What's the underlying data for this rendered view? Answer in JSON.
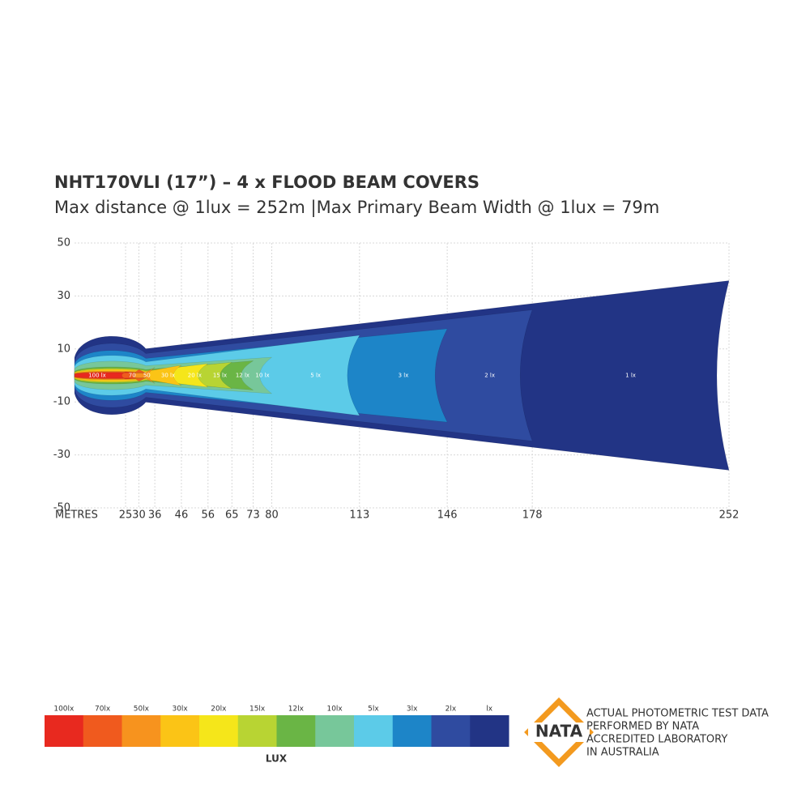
{
  "chart_data": {
    "type": "beam",
    "title": "NHT170VLI (17”) – 4 x FLOOD BEAM COVERS",
    "subtitle": "Max distance @ 1lux = 252m  |Max Primary  Beam Width @ 1lux = 79m",
    "xlabel": "METRES",
    "xlim": [
      0,
      252
    ],
    "xticks": [
      25,
      30,
      36,
      46,
      56,
      65,
      73,
      80,
      113,
      146,
      178,
      252
    ],
    "ylim": [
      -50,
      50
    ],
    "yticks": [
      50,
      30,
      10,
      -10,
      -30,
      -50
    ],
    "grid": true,
    "contour_labels": [
      "100 lx",
      "70",
      "50",
      "30 lx",
      "20 lx",
      "15 lx",
      "12 lx",
      "10 lx",
      "5 lx",
      "3 lx",
      "2 lx",
      "1 lx"
    ],
    "legend": {
      "title": "LUX",
      "labels": [
        "100lx",
        "70lx",
        "50lx",
        "30lx",
        "20lx",
        "15lx",
        "12lx",
        "10lx",
        "5lx",
        "3lx",
        "2lx",
        "lx"
      ],
      "colors": [
        "#e8291f",
        "#f05a1e",
        "#f7931e",
        "#fbc416",
        "#f5e61a",
        "#b8d433",
        "#6ab545",
        "#77c79a",
        "#5ccbe8",
        "#1d85c8",
        "#2f4ba0",
        "#223485"
      ]
    }
  },
  "nata": {
    "logo": "NATA",
    "lines": [
      "ACTUAL PHOTOMETRIC TEST DATA",
      "PERFORMED BY NATA",
      "ACCREDITED LABORATORY",
      "IN AUSTRALIA"
    ]
  }
}
